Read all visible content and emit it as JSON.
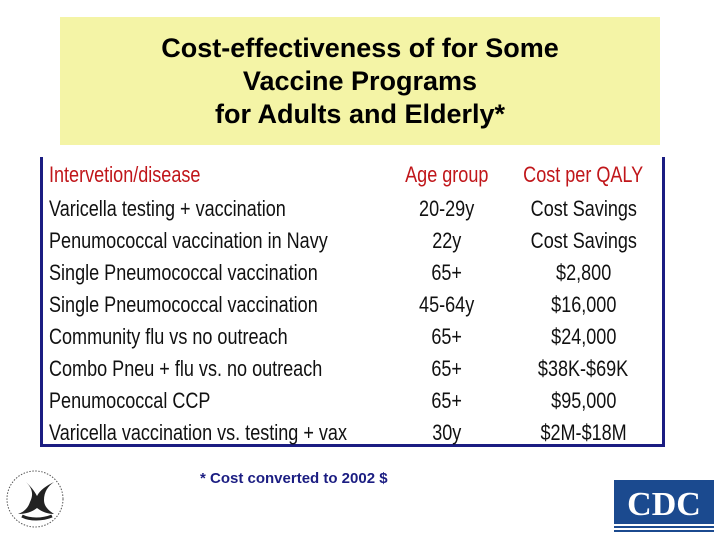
{
  "title": {
    "lines": [
      "Cost-effectiveness of for Some",
      "Vaccine Programs",
      "for Adults and Elderly*"
    ]
  },
  "table": {
    "headers": [
      "Intervetion/disease",
      "Age group",
      "Cost per QALY"
    ],
    "rows": [
      [
        "Varicella testing + vaccination",
        "20-29y",
        "Cost Savings"
      ],
      [
        "Penumococcal vaccination in Navy",
        "22y",
        "Cost Savings"
      ],
      [
        "Single Pneumococcal vaccination",
        "65+",
        "$2,800"
      ],
      [
        "Single Pneumococcal vaccination",
        "45-64y",
        "$16,000"
      ],
      [
        "Community flu vs no outreach",
        "65+",
        "$24,000"
      ],
      [
        "Combo Pneu + flu vs. no outreach",
        "65+",
        "$38K-$69K"
      ],
      [
        "Penumococcal CCP",
        "65+",
        "$95,000"
      ],
      [
        "Varicella vaccination vs. testing + vax",
        "30y",
        "$2M-$18M"
      ]
    ]
  },
  "footnote": "* Cost converted to 2002 $",
  "logos": {
    "cdc_text": "CDC",
    "colors": {
      "cdc_blue": "#1b4a8f",
      "title_bg": "#f4f4a6",
      "header_red": "#c0161a",
      "border_navy": "#1b1d82"
    }
  }
}
